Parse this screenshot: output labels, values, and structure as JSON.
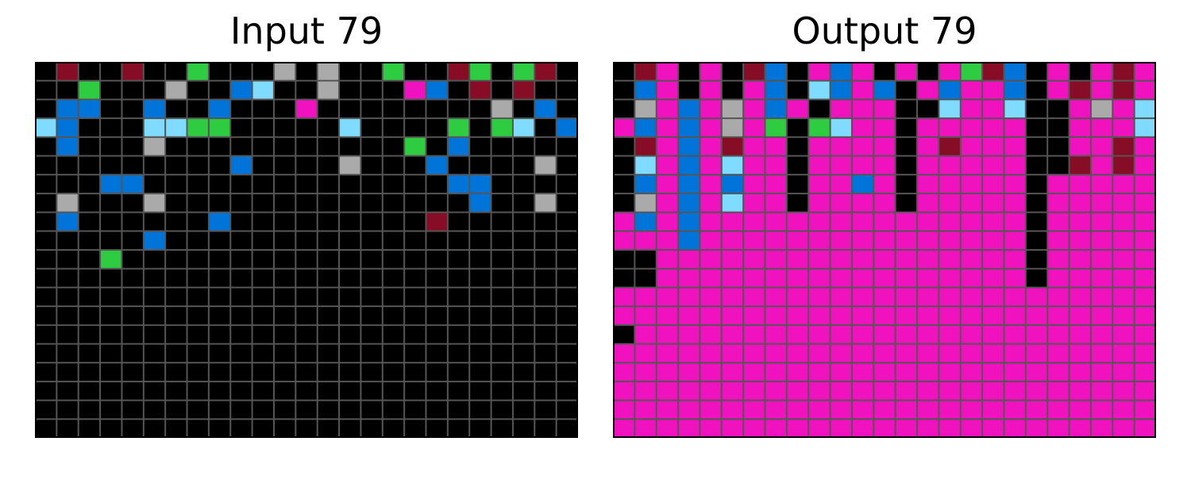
{
  "input": {
    "title": "Input 79",
    "rows": [
      "0800800300050500300830380",
      "0030005001900500061080800",
      "0110010010006000000005010",
      "9100099220000070000202901",
      "0100050400000000020100000",
      "0000000001000050001000050",
      "0001100000000000000110000",
      "0500050000000000000010050",
      "0100000010000000008000000",
      "0000010000000000000000000",
      "0003000000000000000000000",
      "0000000000000000000000000",
      "0000000000000000000000000",
      "0000000000000000000000000",
      "0000000000000000000000000",
      "0000000000000000000000000",
      "0000000000000000000000000",
      "0000000000000000000000000",
      "0000000000000000000000000",
      "0000000000000000000000000"
    ]
  },
  "output": {
    "title": "Output 79",
    "rows": [
      "0860608106160606381060686",
      "0160606107161061661068686",
      "0561656160666007667006569",
      "6161656303966066666006669",
      "0861686606666068666006686",
      "0961696606666066666008686",
      "0161616606616066666066666",
      "0561696606666066666066666",
      "6161666666666666666066666",
      "6661666666666666666066666",
      "0066666666666666666066666",
      "0066666666666666666066666",
      "6666666666666666666666666",
      "6666666666666666666666666",
      "0666666666666666666666666",
      "6666666666666666666666666",
      "6666666666666666666666666",
      "6666666666666666666666666",
      "6666666666666666666666666",
      "6666666666666666666666666"
    ]
  },
  "palette": {
    "0": "#000000",
    "1": "#0074D9",
    "2": "#2ECC40",
    "3": "#2ECC40",
    "5": "#AAAAAA",
    "6": "#F012BE",
    "7": "#7FDBFF",
    "8": "#870C25",
    "9": "#7FDBFF"
  },
  "grid_line_color": "#555555"
}
